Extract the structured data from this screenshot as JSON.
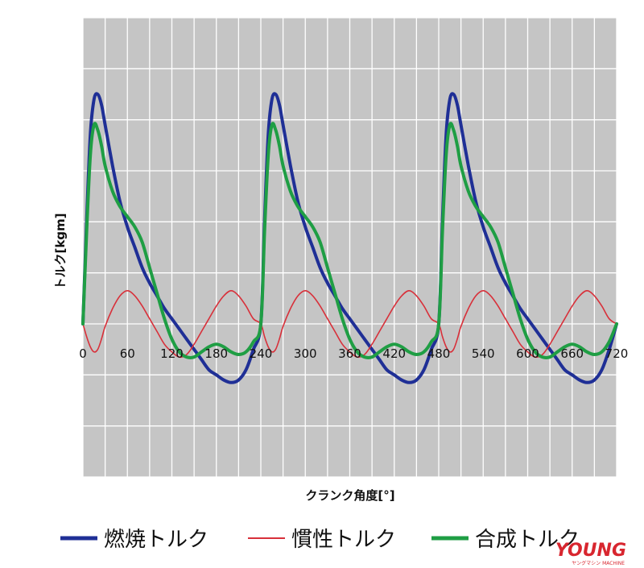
{
  "chart_data": {
    "type": "line",
    "xlabel": "クランク角度[°]",
    "ylabel": "トルク[kgm]",
    "xlim": [
      0,
      720
    ],
    "ylim": [
      -3,
      6
    ],
    "grid": true,
    "legend_position": "bottom",
    "x_ticks": [
      0,
      60,
      120,
      180,
      240,
      300,
      360,
      420,
      480,
      540,
      600,
      660,
      720
    ],
    "x_tick_labels": [
      "0",
      "60",
      "120",
      "180",
      "240",
      "300",
      "360",
      "420",
      "480",
      "540",
      "600",
      "660",
      "720"
    ],
    "x": [
      0,
      5,
      10,
      15,
      20,
      25,
      30,
      40,
      50,
      60,
      70,
      80,
      90,
      100,
      110,
      120,
      130,
      140,
      150,
      160,
      170,
      180,
      190,
      200,
      210,
      220,
      230,
      240
    ],
    "series": [
      {
        "name": "燃焼トルク",
        "color": "#1f2f96",
        "values": [
          0.0,
          2.0,
          3.7,
          4.4,
          4.5,
          4.3,
          3.9,
          3.1,
          2.4,
          1.9,
          1.5,
          1.1,
          0.8,
          0.55,
          0.3,
          0.1,
          -0.1,
          -0.3,
          -0.5,
          -0.7,
          -0.9,
          -1.0,
          -1.1,
          -1.15,
          -1.1,
          -0.9,
          -0.5,
          0.0
        ]
      },
      {
        "name": "慣性トルク",
        "color": "#d8303a",
        "values": [
          0.0,
          -0.25,
          -0.45,
          -0.55,
          -0.5,
          -0.3,
          -0.05,
          0.3,
          0.55,
          0.65,
          0.55,
          0.35,
          0.1,
          -0.15,
          -0.4,
          -0.55,
          -0.65,
          -0.6,
          -0.4,
          -0.15,
          0.1,
          0.35,
          0.55,
          0.65,
          0.55,
          0.35,
          0.1,
          0.0
        ]
      },
      {
        "name": "合成トルク",
        "color": "#1f9e44",
        "values": [
          0.0,
          1.8,
          3.3,
          3.9,
          3.8,
          3.5,
          3.1,
          2.6,
          2.3,
          2.1,
          1.9,
          1.6,
          1.1,
          0.6,
          0.1,
          -0.3,
          -0.55,
          -0.65,
          -0.65,
          -0.55,
          -0.45,
          -0.4,
          -0.45,
          -0.55,
          -0.6,
          -0.55,
          -0.35,
          0.0
        ]
      }
    ]
  },
  "branding": {
    "logo_text": "YOUNG",
    "logo_subtext": "ヤングマシン MACHINE"
  }
}
